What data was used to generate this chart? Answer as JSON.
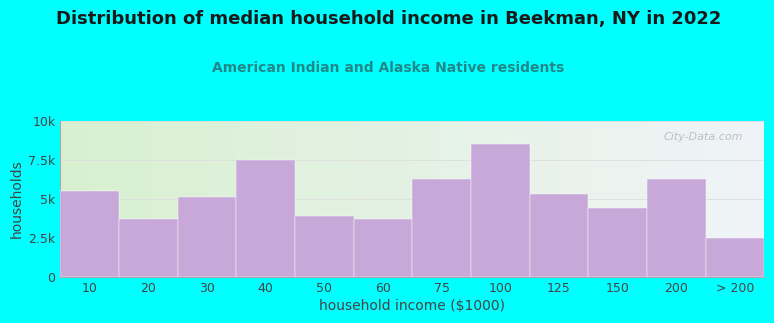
{
  "title": "Distribution of median household income in Beekman, NY in 2022",
  "subtitle": "American Indian and Alaska Native residents",
  "xlabel": "household income ($1000)",
  "ylabel": "households",
  "background_color": "#00FFFF",
  "plot_bg_gradient_topleft": "#d8f0d0",
  "plot_bg_gradient_right": "#f0f4f8",
  "bar_color": "#c8a8d8",
  "bar_edge_color": "#c8a8d8",
  "categories": [
    "10",
    "20",
    "30",
    "40",
    "50",
    "60",
    "75",
    "100",
    "125",
    "150",
    "200",
    "> 200"
  ],
  "values": [
    5500,
    3700,
    5100,
    7500,
    3900,
    3700,
    6300,
    8500,
    5300,
    4400,
    6300,
    2500
  ],
  "ylim": [
    0,
    10000
  ],
  "yticks": [
    0,
    2500,
    5000,
    7500,
    10000
  ],
  "ytick_labels": [
    "0",
    "2.5k",
    "5k",
    "7.5k",
    "10k"
  ],
  "title_fontsize": 13,
  "subtitle_fontsize": 10,
  "axis_label_fontsize": 10,
  "tick_fontsize": 9,
  "watermark": "City-Data.com"
}
